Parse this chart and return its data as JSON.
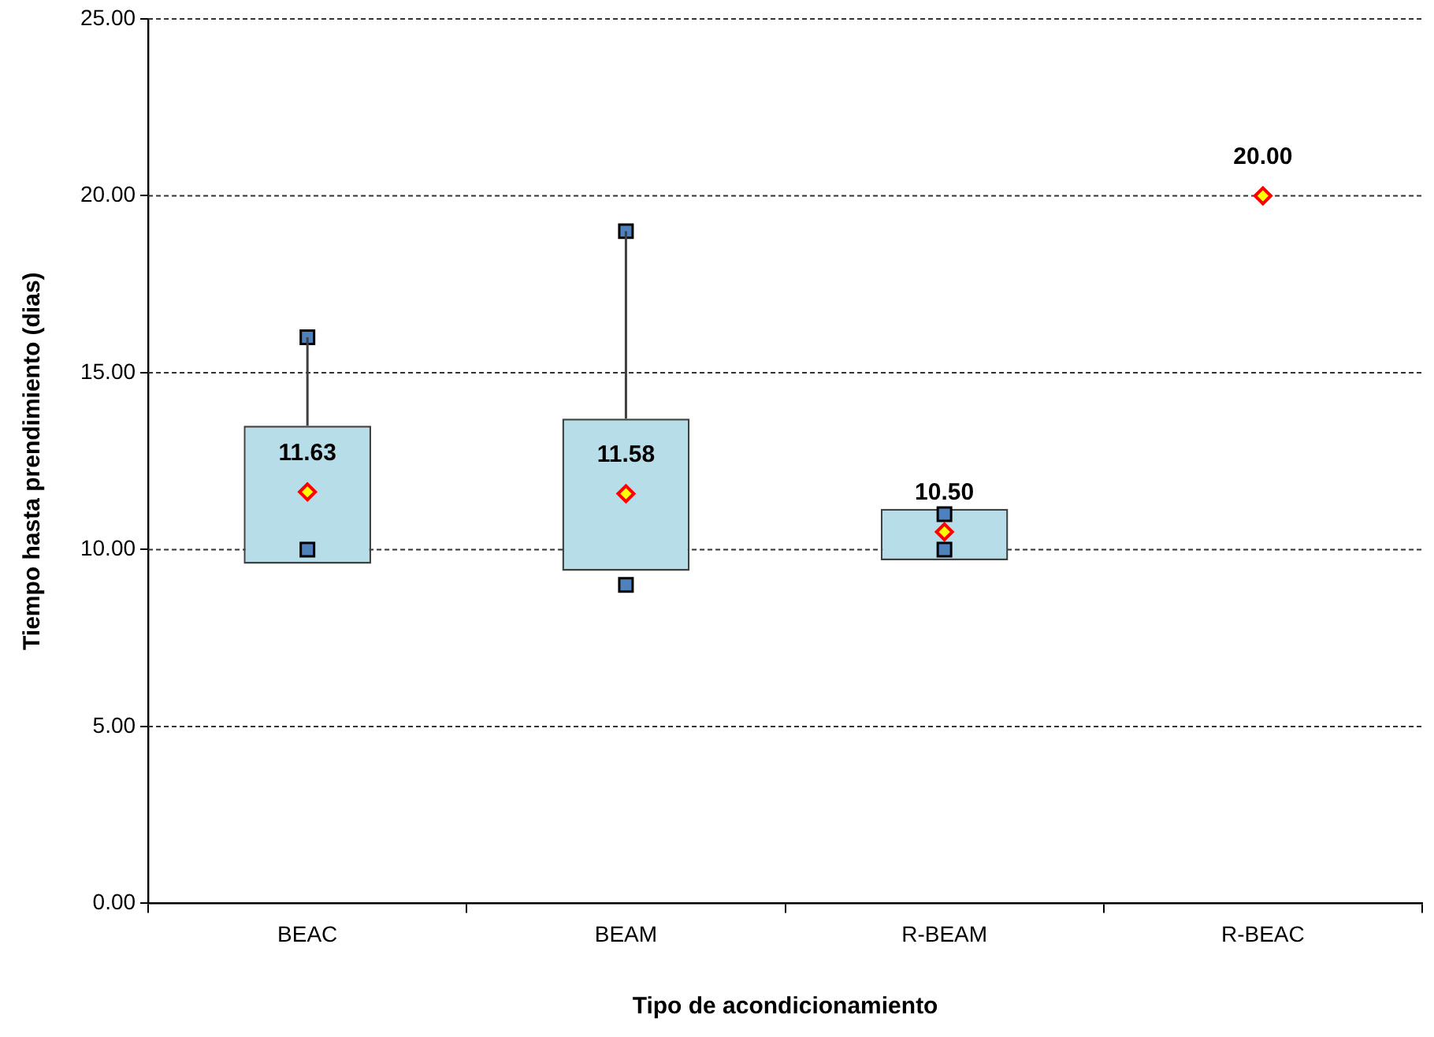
{
  "chart_data": {
    "type": "bar",
    "xlabel": "Tipo de acondicionamiento",
    "ylabel": "Tiempo hasta prendimiento (dias)",
    "categories": [
      "BEAC",
      "BEAM",
      "R-BEAM",
      "R-BEAC"
    ],
    "ylim": [
      0,
      25
    ],
    "yticks": [
      {
        "value": 0,
        "label": "0.00"
      },
      {
        "value": 5,
        "label": "5.00"
      },
      {
        "value": 10,
        "label": "10.00"
      },
      {
        "value": 15,
        "label": "15.00"
      },
      {
        "value": 20,
        "label": "20.00"
      },
      {
        "value": 25,
        "label": "25.00"
      }
    ],
    "grid": "y",
    "legend": false,
    "series": [
      {
        "type": "bar",
        "color": "#b7dde8",
        "base": [
          9.6,
          9.4,
          9.7,
          null
        ],
        "values": [
          3.9,
          4.3,
          1.45,
          null
        ],
        "errors": [
          [
            13.5,
            16
          ],
          [
            13.7,
            19
          ],
          null,
          null
        ]
      },
      {
        "type": "scatter",
        "marker": "square",
        "color": "#4f81bd",
        "x": [
          "BEAC",
          "BEAM",
          "R-BEAM",
          "R-BEAC"
        ],
        "values": [
          16,
          19,
          11,
          null
        ]
      },
      {
        "type": "scatter",
        "marker": "square",
        "color": "#4f81bd",
        "x": [
          "BEAC",
          "BEAM",
          "R-BEAM",
          "R-BEAC"
        ],
        "values": [
          10,
          9,
          10,
          null
        ]
      },
      {
        "type": "scatter",
        "marker": "diamond",
        "color": "#ffff00",
        "x": [
          "BEAC",
          "BEAM",
          "R-BEAM",
          "R-BEAC"
        ],
        "values": [
          11.63,
          11.58,
          10.5,
          20
        ],
        "value_labels": [
          "11.63",
          "11.58",
          "10.50",
          "20.00"
        ]
      }
    ]
  }
}
